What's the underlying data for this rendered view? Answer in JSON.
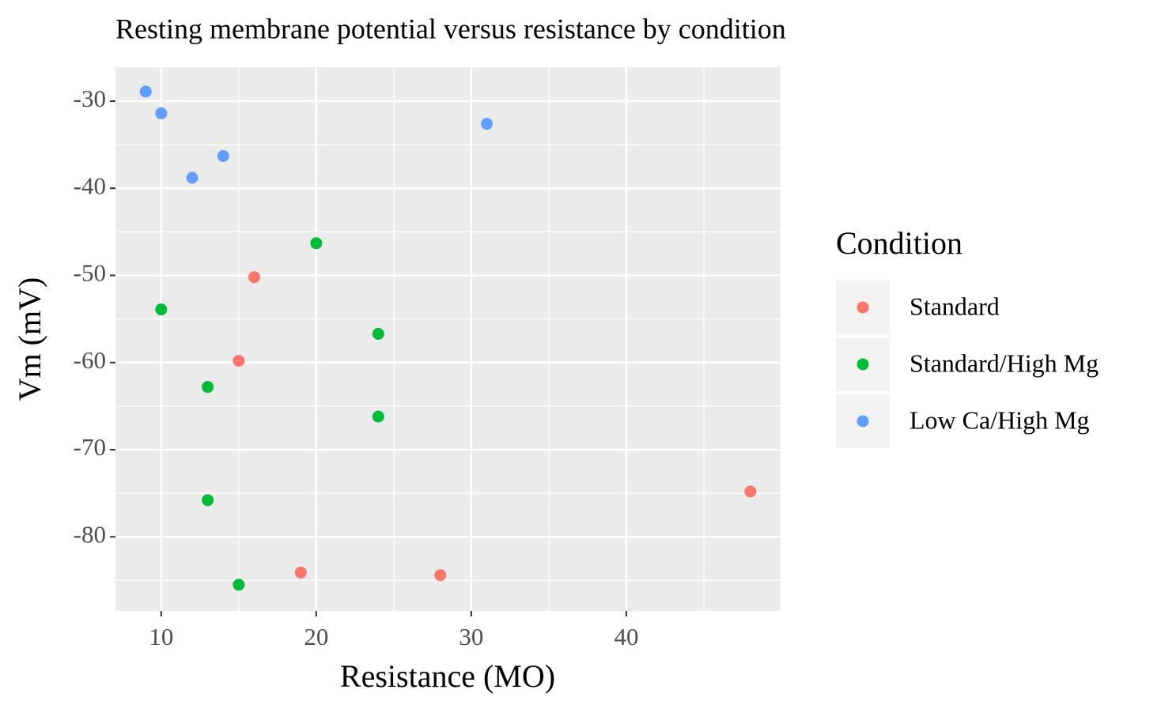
{
  "chart_data": {
    "type": "scatter",
    "title": "Resting membrane potential versus resistance by condition",
    "x_label": "Resistance (MO)",
    "y_label": "Vm (mV)",
    "legend_title": "Condition",
    "legend_position": "right",
    "xlim": [
      7.05,
      49.95
    ],
    "ylim": [
      -88.5,
      -26.1
    ],
    "xticks": [
      10,
      20,
      30,
      40
    ],
    "yticks": [
      -30,
      -40,
      -50,
      -60,
      -70,
      -80
    ],
    "xminor": [
      15,
      25,
      35,
      45
    ],
    "yminor": [
      -35,
      -45,
      -55,
      -65,
      -75,
      -85
    ],
    "grid": true,
    "series": [
      {
        "name": "Standard",
        "color": "#F8766D",
        "x": [
          16,
          15,
          48,
          19,
          28
        ],
        "values": [
          -50.2,
          -59.8,
          -74.8,
          -84.1,
          -84.4
        ]
      },
      {
        "name": "Standard/High Mg",
        "color": "#00BA38",
        "x": [
          20,
          10,
          24,
          13,
          24,
          13,
          15
        ],
        "values": [
          -46.3,
          -53.9,
          -56.7,
          -62.8,
          -66.2,
          -75.8,
          -85.5
        ]
      },
      {
        "name": "Low Ca/High Mg",
        "color": "#619CFF",
        "x": [
          9,
          10,
          31,
          14,
          12
        ],
        "values": [
          -28.9,
          -31.4,
          -32.6,
          -36.3,
          -38.8
        ]
      }
    ]
  }
}
